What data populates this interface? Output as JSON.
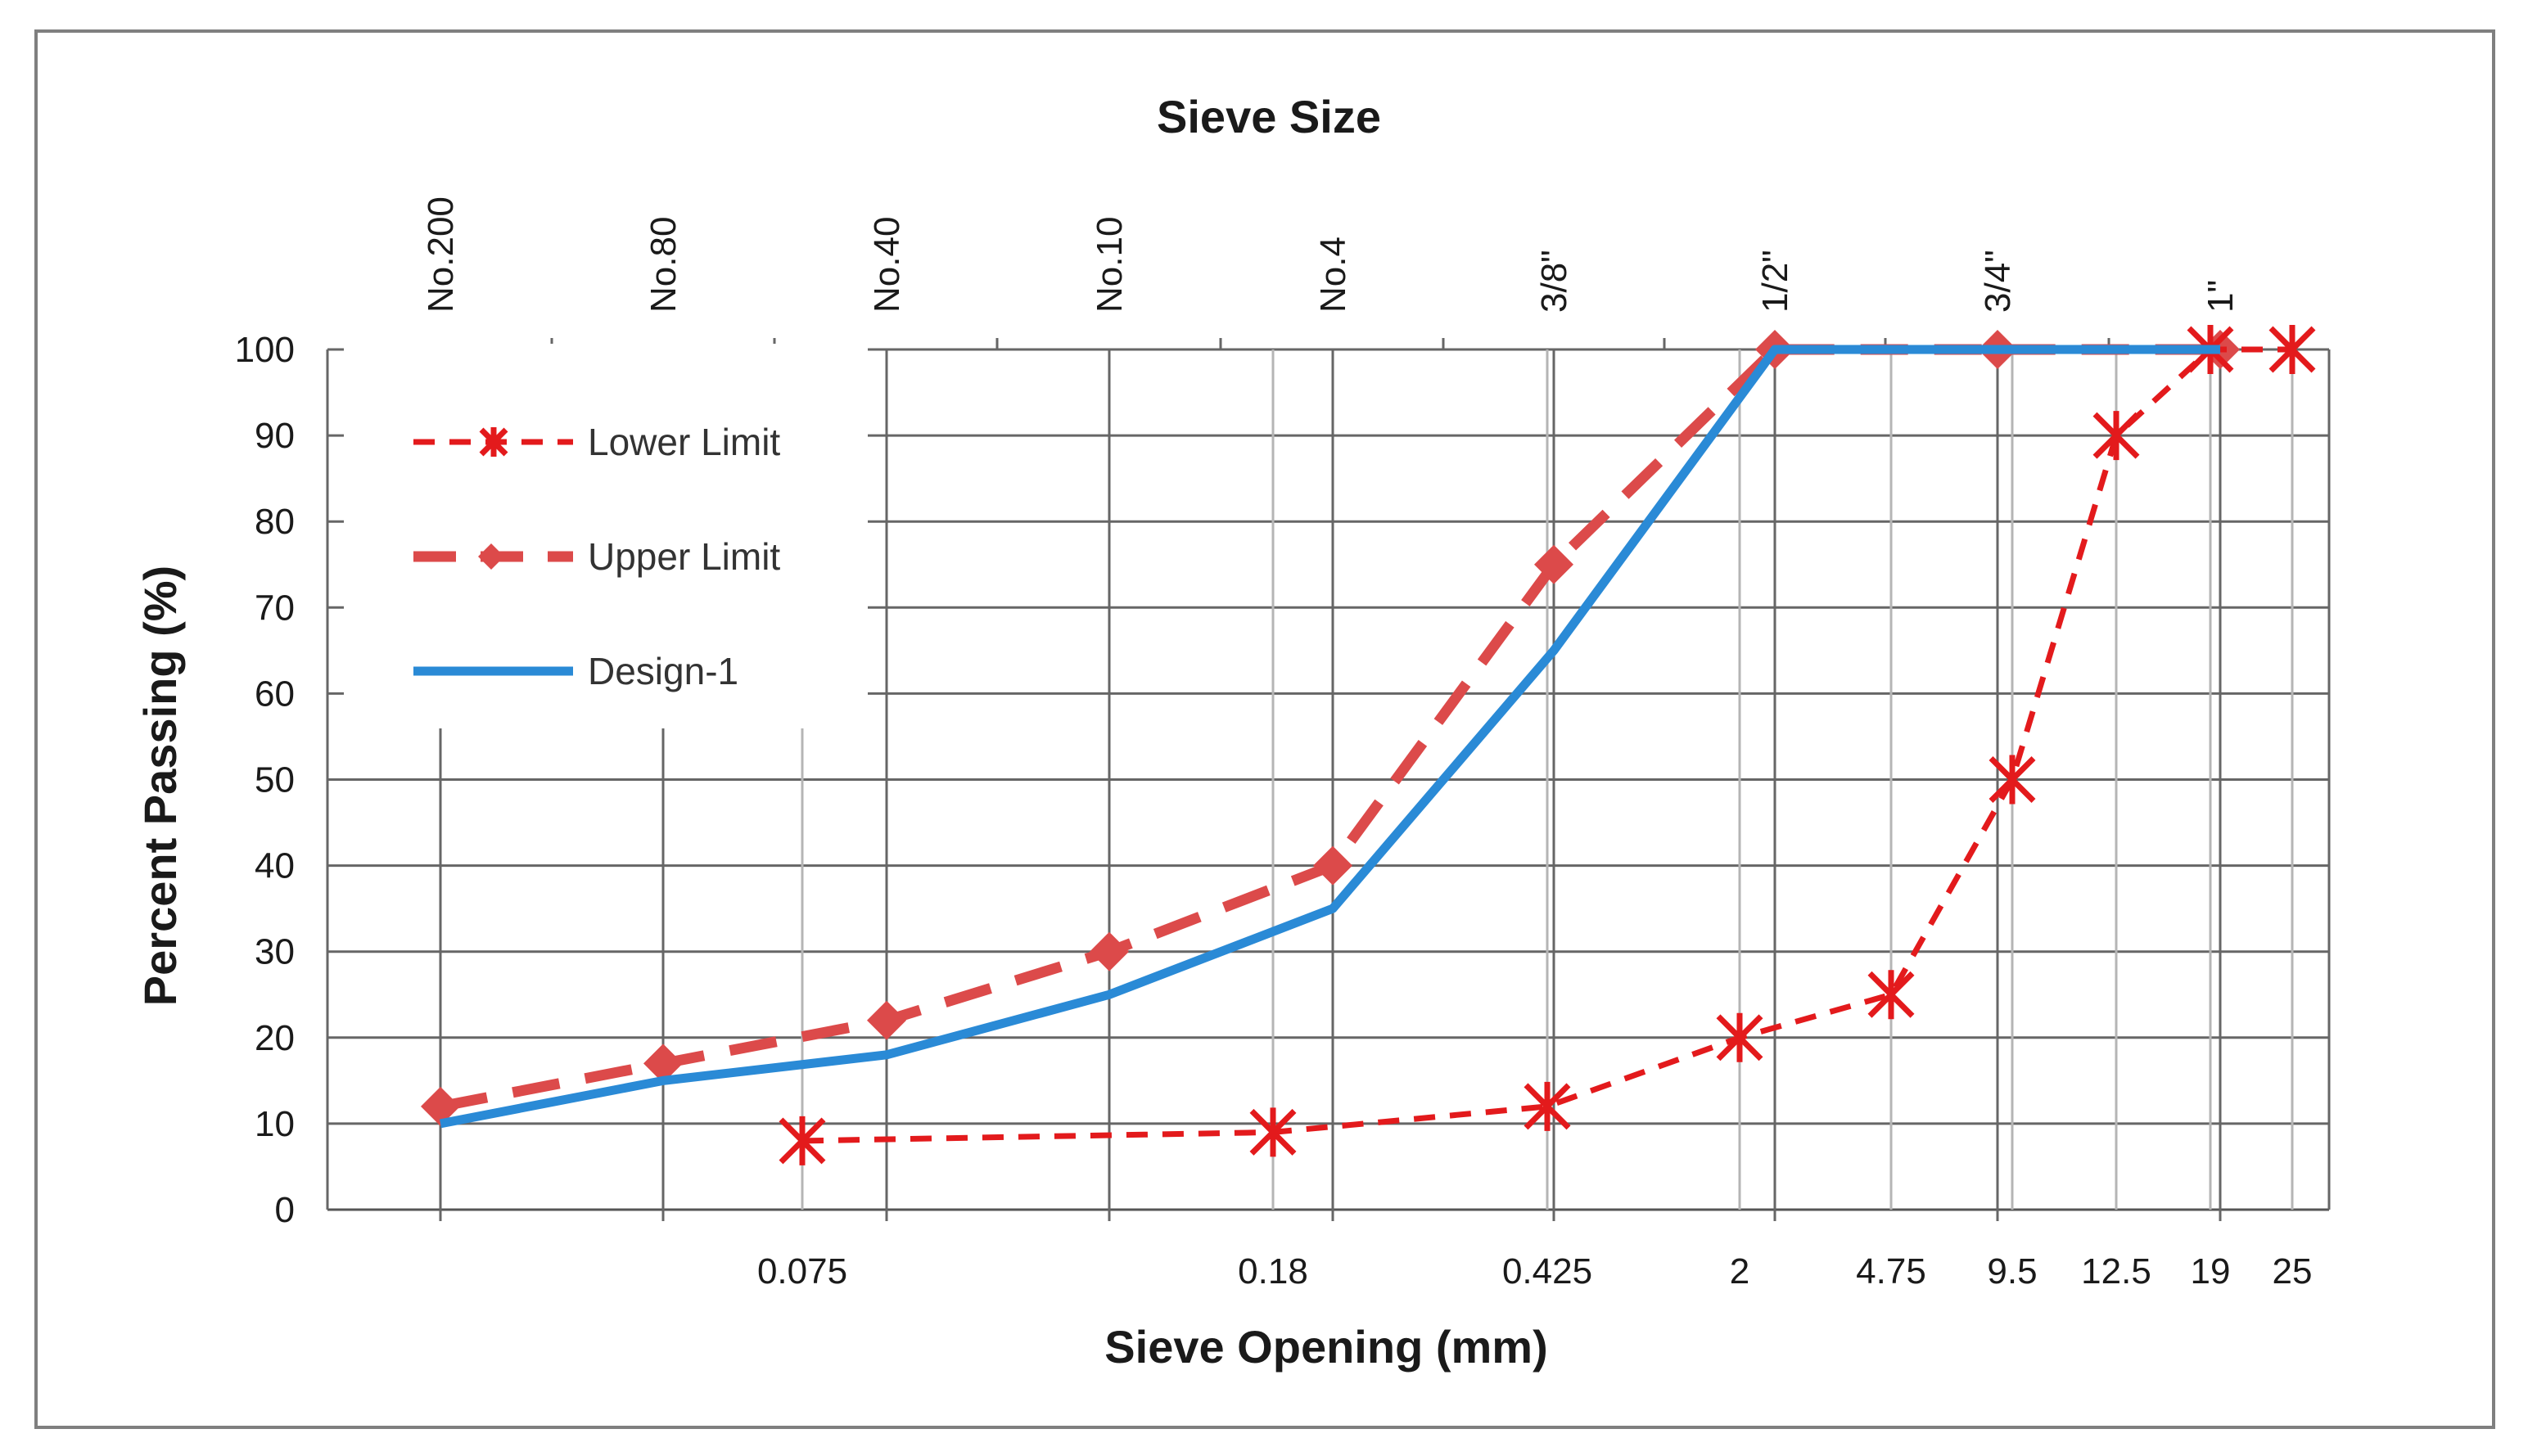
{
  "chart_data": {
    "type": "line",
    "title": "Sieve Size",
    "xlabel": "Sieve Opening (mm)",
    "ylabel": "Percent Passing (%)",
    "ylim": [
      0,
      100
    ],
    "yticks": [
      "0",
      "10",
      "20",
      "30",
      "40",
      "50",
      "60",
      "70",
      "80",
      "90",
      "100"
    ],
    "sieve_sizes": [
      "No.200",
      "No.80",
      "No.40",
      "No.10",
      "No.4",
      "3/8\"",
      "1/2\"",
      "3/4\"",
      "1\""
    ],
    "openings": [
      "0.075",
      "0.18",
      "0.425",
      "2",
      "4.75",
      "9.5",
      "12.5",
      "19",
      "25"
    ],
    "series": [
      {
        "name": "Lower Limit",
        "color": "#e31a1c",
        "marker": "asterisk",
        "points": [
          {
            "sieve": "0.075",
            "value": 8
          },
          {
            "sieve": "0.18",
            "value": 9
          },
          {
            "sieve": "0.425",
            "value": 12
          },
          {
            "sieve": "2",
            "value": 20
          },
          {
            "sieve": "4.75",
            "value": 25
          },
          {
            "sieve": "9.5",
            "value": 50
          },
          {
            "sieve": "12.5",
            "value": 90
          },
          {
            "sieve": "19",
            "value": 100
          },
          {
            "sieve": "25",
            "value": 100
          }
        ]
      },
      {
        "name": "Upper Limit",
        "color": "#dc4a4a",
        "marker": "diamond",
        "points": [
          {
            "sieve": "No.200",
            "value": 12
          },
          {
            "sieve": "No.80",
            "value": 17
          },
          {
            "sieve": "No.40",
            "value": 22
          },
          {
            "sieve": "No.10",
            "value": 30
          },
          {
            "sieve": "No.4",
            "value": 40
          },
          {
            "sieve": "3/8\"",
            "value": 75
          },
          {
            "sieve": "1/2\"",
            "value": 100
          },
          {
            "sieve": "3/4\"",
            "value": 100
          },
          {
            "sieve": "1\"",
            "value": 100
          }
        ]
      },
      {
        "name": "Design-1",
        "color": "#2a8ad6",
        "marker": "none",
        "points": [
          {
            "sieve": "No.200",
            "value": 10
          },
          {
            "sieve": "No.80",
            "value": 15
          },
          {
            "sieve": "No.40",
            "value": 18
          },
          {
            "sieve": "No.10",
            "value": 25
          },
          {
            "sieve": "No.4",
            "value": 35
          },
          {
            "sieve": "3/8\"",
            "value": 65
          },
          {
            "sieve": "1/2\"",
            "value": 100
          },
          {
            "sieve": "3/4\"",
            "value": 100
          },
          {
            "sieve": "1\"",
            "value": 100
          }
        ]
      }
    ],
    "legend": "upper-left"
  }
}
